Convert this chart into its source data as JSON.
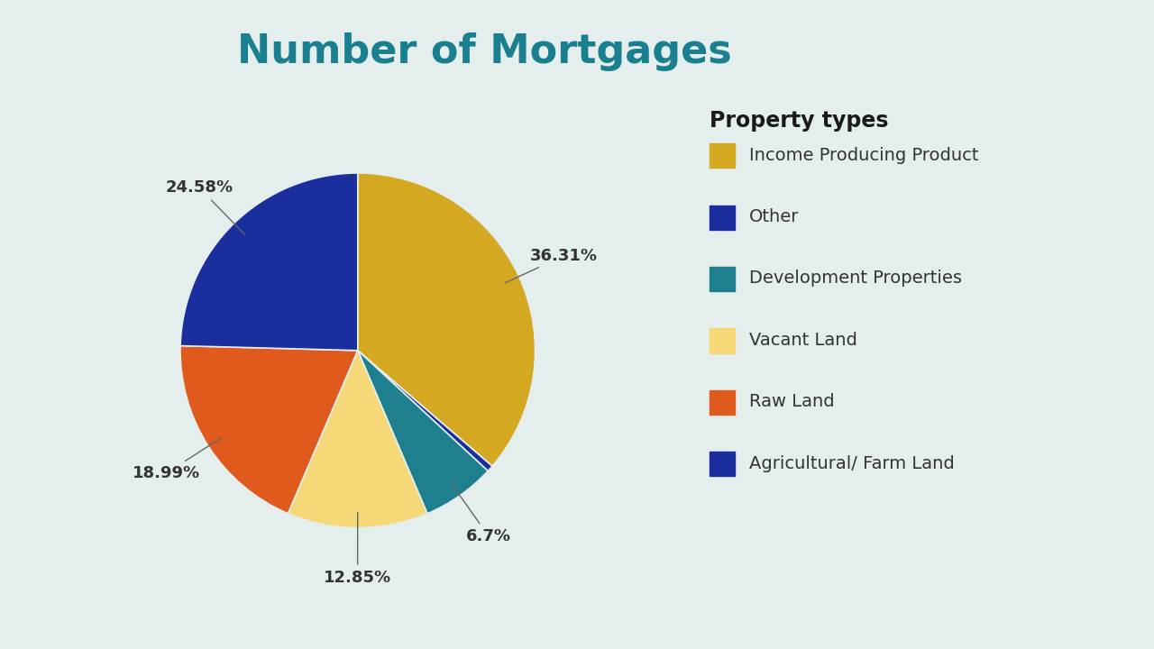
{
  "title": "Number of Mortgages",
  "title_color": "#1a7f8e",
  "title_fontsize": 32,
  "background_color": "#e4eeed",
  "legend_title": "Property types",
  "legend_title_fontsize": 17,
  "legend_fontsize": 14,
  "labels": [
    "Income Producing Product",
    "Agricultural/ Farm Land",
    "Raw Land",
    "Vacant Land",
    "Development Properties",
    "Other"
  ],
  "values": [
    36.31,
    0.58,
    6.7,
    12.85,
    18.99,
    24.58
  ],
  "colors": [
    "#D4A820",
    "#1a2e9e",
    "#1E7F8E",
    "#F5D878",
    "#E05A1E",
    "#1a2e9e"
  ],
  "legend_colors": [
    "#D4A820",
    "#1a2e9e",
    "#1E7F8E",
    "#F5D878",
    "#E05A1E",
    "#1a2e9e"
  ],
  "legend_labels": [
    "Income Producing Product",
    "Other",
    "Development Properties",
    "Vacant Land",
    "Raw Land",
    "Agricultural/ Farm Land"
  ],
  "pct_labels": [
    "36.31%",
    "",
    "",
    "12.85%",
    "18.99%",
    "24.58%"
  ],
  "pct_6_7": "6.7%",
  "startangle": 90,
  "wedge_linewidth": 1.2,
  "wedge_edgecolor": "#e4eeed"
}
